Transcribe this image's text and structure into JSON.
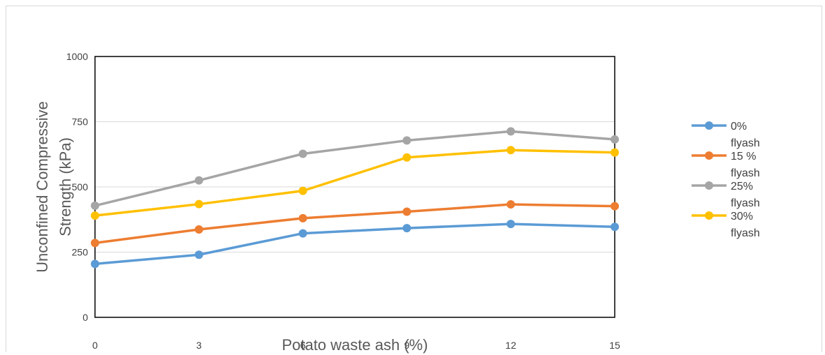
{
  "chart_data": {
    "type": "line",
    "title": "",
    "xlabel": "Potato waste ash (%)",
    "ylabel": "Unconfined Compressive Strength (kPa)",
    "x": [
      0,
      3,
      6,
      9,
      12,
      15
    ],
    "x_tick_labels": [
      "0",
      "3",
      "6",
      "9",
      "12",
      "15"
    ],
    "ylim": [
      0,
      1000
    ],
    "y_ticks": [
      0,
      250,
      500,
      750,
      1000
    ],
    "grid": true,
    "legend_position": "right",
    "series": [
      {
        "name": "0% flyash",
        "name_lines": [
          "0%",
          "flyash"
        ],
        "color": "#5b9bd5",
        "values": [
          205,
          240,
          322,
          342,
          358,
          347
        ]
      },
      {
        "name": "15 % flyash",
        "name_lines": [
          "15 %",
          "flyash"
        ],
        "color": "#ed7d31",
        "values": [
          285,
          337,
          380,
          405,
          433,
          426
        ]
      },
      {
        "name": "25% flyash",
        "name_lines": [
          "25%",
          "flyash"
        ],
        "color": "#a5a5a5",
        "values": [
          428,
          525,
          627,
          678,
          713,
          682
        ]
      },
      {
        "name": "30% flyash",
        "name_lines": [
          "30%",
          "flyash"
        ],
        "color": "#ffc000",
        "values": [
          390,
          434,
          485,
          613,
          641,
          632
        ]
      }
    ]
  }
}
